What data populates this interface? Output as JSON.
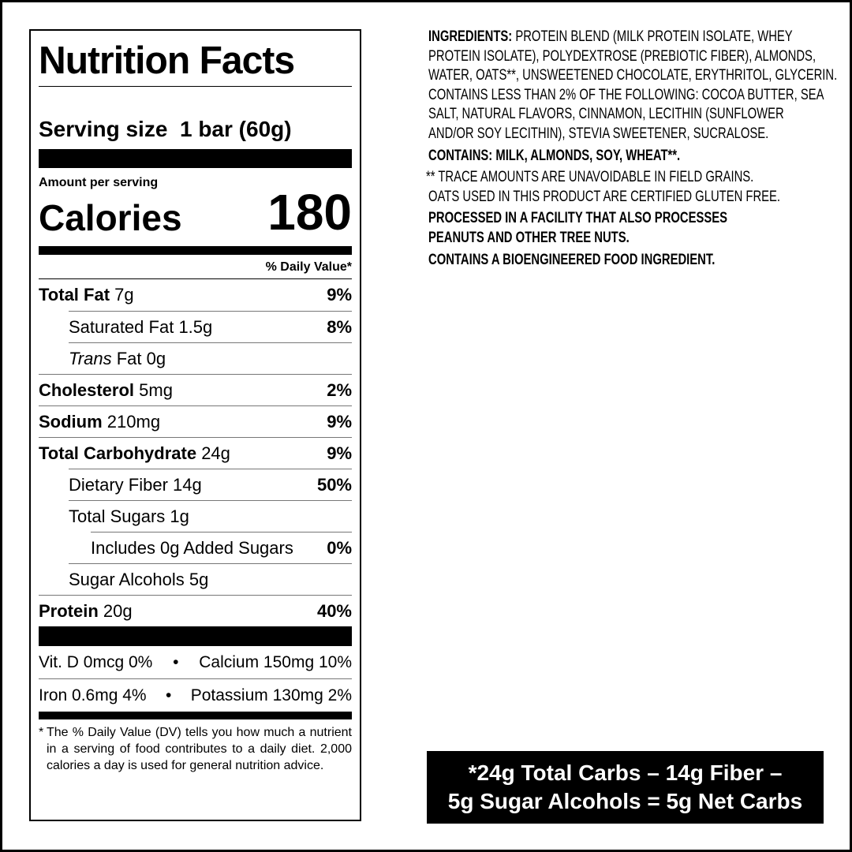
{
  "nutrition": {
    "title": "Nutrition Facts",
    "serving_size": "Serving size  1 bar (60g)",
    "amount_per_serving": "Amount per serving",
    "calories_label": "Calories",
    "calories_value": "180",
    "dv_header": "% Daily Value*",
    "rows": [
      {
        "name": "Total Fat",
        "amount": "7g",
        "dv": "9%",
        "bold": true,
        "indent": 0
      },
      {
        "name": "Saturated Fat",
        "amount": "1.5g",
        "dv": "8%",
        "bold": false,
        "indent": 1
      },
      {
        "name": "Trans",
        "name_suffix": "Fat",
        "amount": "0g",
        "dv": "",
        "bold": false,
        "indent": 1
      },
      {
        "name": "Cholesterol",
        "amount": "5mg",
        "dv": "2%",
        "bold": true,
        "indent": 0
      },
      {
        "name": "Sodium",
        "amount": "210mg",
        "dv": "9%",
        "bold": true,
        "indent": 0
      },
      {
        "name": "Total Carbohydrate",
        "amount": "24g",
        "dv": "9%",
        "bold": true,
        "indent": 0
      },
      {
        "name": "Dietary Fiber",
        "amount": "14g",
        "dv": "50%",
        "bold": false,
        "indent": 1
      },
      {
        "name": "Total Sugars",
        "amount": "1g",
        "dv": "",
        "bold": false,
        "indent": 1
      },
      {
        "name": "Includes 0g Added Sugars",
        "amount": "",
        "dv": "0%",
        "bold": false,
        "indent": 2
      },
      {
        "name": "Sugar Alcohols",
        "amount": "5g",
        "dv": "",
        "bold": false,
        "indent": 1
      },
      {
        "name": "Protein",
        "amount": "20g",
        "dv": "40%",
        "bold": true,
        "indent": 0
      }
    ],
    "vitamins": [
      {
        "left": "Vit. D 0mcg 0%",
        "sep": "•",
        "right": "Calcium 150mg 10%"
      },
      {
        "left": "Iron 0.6mg 4%",
        "sep": "•",
        "right": "Potassium 130mg 2%"
      }
    ],
    "footnote_star": "*",
    "footnote": "The % Daily Value (DV) tells you how much a nutrient in a serving of food contributes to a daily diet. 2,000 calories a day is used for general nutrition advice."
  },
  "ingredients": {
    "label": "INGREDIENTS:",
    "lines": [
      " PROTEIN BLEND (MILK PROTEIN ISOLATE, WHEY",
      "PROTEIN ISOLATE), POLYDEXTROSE (PREBIOTIC FIBER), ALMONDS,",
      "WATER, OATS**, UNSWEETENED CHOCOLATE, ERYTHRITOL, GLYCERIN.",
      "CONTAINS LESS THAN 2% OF THE FOLLOWING: COCOA BUTTER, SEA",
      "SALT, NATURAL FLAVORS, CINNAMON, LECITHIN (SUNFLOWER",
      "AND/OR SOY LECITHIN), STEVIA SWEETENER, SUCRALOSE."
    ],
    "contains": "CONTAINS: MILK, ALMONDS, SOY, WHEAT**.",
    "trace_lines": [
      "** TRACE AMOUNTS ARE UNAVOIDABLE IN FIELD GRAINS.",
      "OATS USED IN THIS PRODUCT ARE CERTIFIED GLUTEN FREE."
    ],
    "facility_lines": [
      "PROCESSED IN A FACILITY THAT ALSO PROCESSES",
      "PEANUTS AND OTHER TREE NUTS."
    ],
    "bioengineered": "CONTAINS A BIOENGINEERED FOOD INGREDIENT."
  },
  "net_carbs": {
    "line1": "*24g Total Carbs – 14g Fiber –",
    "line2": "5g Sugar Alcohols = 5g Net Carbs"
  }
}
